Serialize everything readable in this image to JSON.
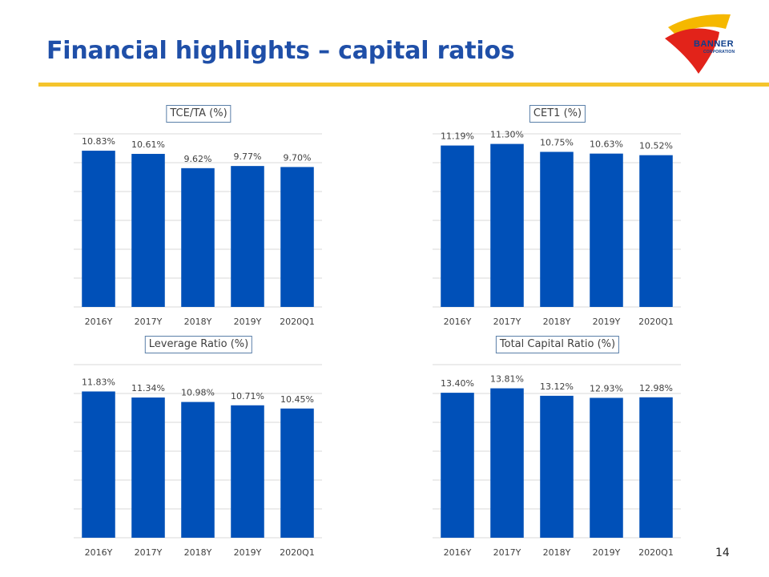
{
  "slide": {
    "title": "Financial highlights – capital ratios",
    "page_number": "14"
  },
  "logo": {
    "name": "BANNER",
    "subtitle": "CORPORATION"
  },
  "colors": {
    "bar": "#0050b8",
    "title": "#1f4fa8",
    "rule": "#f5c42c",
    "grid": "#d9d9d9"
  },
  "chart_data": [
    {
      "type": "bar",
      "title": "TCE/TA (%)",
      "categories": [
        "2016Y",
        "2017Y",
        "2018Y",
        "2019Y",
        "2020Q1"
      ],
      "values": [
        10.83,
        10.61,
        9.62,
        9.77,
        9.7
      ],
      "labels": [
        "10.83%",
        "10.61%",
        "9.62%",
        "9.77%",
        "9.70%"
      ],
      "xlabel": "",
      "ylabel": "",
      "ylim": [
        0,
        12
      ],
      "grid": true,
      "legend": "none"
    },
    {
      "type": "bar",
      "title": "CET1 (%)",
      "categories": [
        "2016Y",
        "2017Y",
        "2018Y",
        "2019Y",
        "2020Q1"
      ],
      "values": [
        11.19,
        11.3,
        10.75,
        10.63,
        10.52
      ],
      "labels": [
        "11.19%",
        "11.30%",
        "10.75%",
        "10.63%",
        "10.52%"
      ],
      "xlabel": "",
      "ylabel": "",
      "ylim": [
        0,
        12
      ],
      "grid": true,
      "legend": "none"
    },
    {
      "type": "bar",
      "title": "Leverage Ratio (%)",
      "categories": [
        "2016Y",
        "2017Y",
        "2018Y",
        "2019Y",
        "2020Q1"
      ],
      "values": [
        11.83,
        11.34,
        10.98,
        10.71,
        10.45
      ],
      "labels": [
        "11.83%",
        "11.34%",
        "10.98%",
        "10.71%",
        "10.45%"
      ],
      "xlabel": "",
      "ylabel": "",
      "ylim": [
        0,
        14
      ],
      "grid": true,
      "legend": "none"
    },
    {
      "type": "bar",
      "title": "Total Capital Ratio (%)",
      "categories": [
        "2016Y",
        "2017Y",
        "2018Y",
        "2019Y",
        "2020Q1"
      ],
      "values": [
        13.4,
        13.81,
        13.12,
        12.93,
        12.98
      ],
      "labels": [
        "13.40%",
        "13.81%",
        "13.12%",
        "12.93%",
        "12.98%"
      ],
      "xlabel": "",
      "ylabel": "",
      "ylim": [
        0,
        16
      ],
      "grid": true,
      "legend": "none"
    }
  ]
}
